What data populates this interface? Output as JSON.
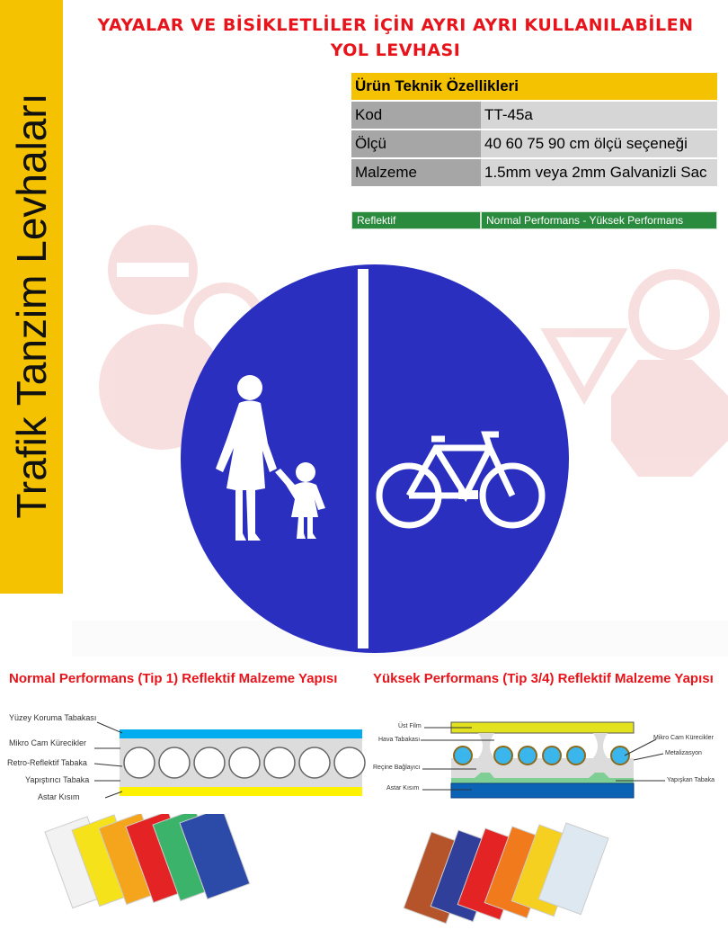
{
  "title_line1": "YAYALAR VE BİSİKLETLİLER İÇİN AYRI AYRI KULLANILABİLEN",
  "title_line2": "YOL LEVHASI",
  "sidebar_text": "Trafik Tanzim Levhaları",
  "specs": {
    "heading": "Ürün Teknik Özellikleri",
    "rows": [
      {
        "key": "Kod",
        "value": "TT-45a"
      },
      {
        "key": "Ölçü",
        "value": "40 60 75 90 cm ölçü seçeneği"
      },
      {
        "key": "Malzeme",
        "value": "1.5mm veya 2mm Galvanizli Sac"
      }
    ]
  },
  "reflective": {
    "key": "Reflektif",
    "value": "Normal Performans - Yüksek Performans"
  },
  "sign": {
    "color": "#2a2fc0",
    "icons": [
      "pedestrian-adult-child-icon",
      "bicycle-icon"
    ]
  },
  "section_normal": {
    "title": "Normal Performans (Tip 1) Reflektif Malzeme Yapısı",
    "labels": [
      "Yüzey Koruma Tabakası",
      "Mikro Cam Kürecikler",
      "Retro-Reflektif Tabaka",
      "Yapıştırıcı Tabaka",
      "Astar Kısım"
    ]
  },
  "section_high": {
    "title": "Yüksek Performans (Tip 3/4) Reflektif Malzeme Yapısı",
    "labels_left": [
      "Üst Film",
      "Hava Tabakası",
      "Reçine Bağlayıcı",
      "Astar Kısım"
    ],
    "labels_right": [
      "Mikro Cam Kürecikler",
      "Metalizasyon",
      "Yapışkan Tabaka"
    ]
  },
  "swatches_left": [
    "#f2f2f2",
    "#f5e21a",
    "#f5a51c",
    "#e42424",
    "#3bb36b",
    "#2c4aa8"
  ],
  "swatches_right": [
    "#b5542a",
    "#2f3f9a",
    "#e42424",
    "#f07a1c",
    "#f5d020",
    "#dde8f0"
  ]
}
